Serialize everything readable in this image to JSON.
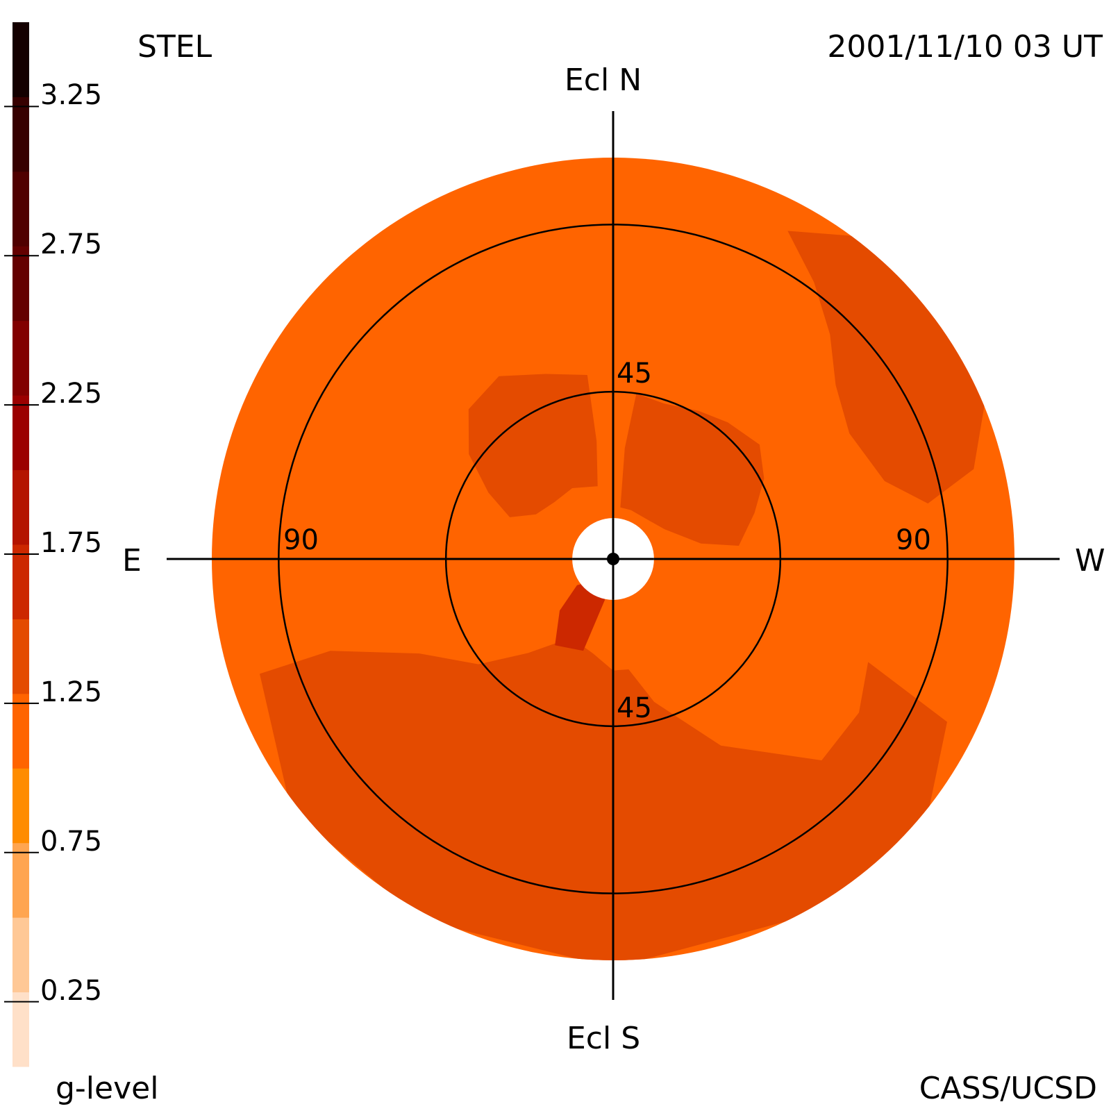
{
  "header": {
    "left_title": "STEL",
    "timestamp": "2001/11/10 03 UT"
  },
  "footer": {
    "colorbar_label": "g-level",
    "credit": "CASS/UCSD"
  },
  "chart_data": {
    "type": "heatmap",
    "projection": "polar sky map (Fisheye)",
    "directions": {
      "north": "Ecl N",
      "south": "Ecl S",
      "east": "E",
      "west": "W"
    },
    "ring_labels": {
      "north_inner": "45",
      "south_inner": "45",
      "east_outer": "90",
      "west_outer": "90"
    },
    "elongation_rings_deg": [
      45,
      90
    ],
    "sky_extent_deg": 108,
    "sun_occult_deg": 11,
    "colorbar": {
      "min": 0,
      "max": 3.5,
      "tick_values": [
        0.25,
        0.75,
        1.25,
        1.75,
        2.25,
        2.75,
        3.25
      ],
      "tick_labels": [
        "0.25",
        "0.75",
        "1.25",
        "1.75",
        "2.25",
        "2.75",
        "3.25"
      ],
      "levels": [
        {
          "from": 0.0,
          "to": 0.25,
          "color": "#ffe0c8"
        },
        {
          "from": 0.25,
          "to": 0.5,
          "color": "#ffc896"
        },
        {
          "from": 0.5,
          "to": 0.75,
          "color": "#ffa550"
        },
        {
          "from": 0.75,
          "to": 1.0,
          "color": "#ff8c00"
        },
        {
          "from": 1.0,
          "to": 1.25,
          "color": "#ff6400"
        },
        {
          "from": 1.25,
          "to": 1.5,
          "color": "#e44b00"
        },
        {
          "from": 1.5,
          "to": 1.75,
          "color": "#cc2800"
        },
        {
          "from": 1.75,
          "to": 2.0,
          "color": "#b41400"
        },
        {
          "from": 2.0,
          "to": 2.25,
          "color": "#9b0000"
        },
        {
          "from": 2.25,
          "to": 2.5,
          "color": "#820000"
        },
        {
          "from": 2.5,
          "to": 2.75,
          "color": "#640000"
        },
        {
          "from": 2.75,
          "to": 3.0,
          "color": "#500000"
        },
        {
          "from": 3.0,
          "to": 3.25,
          "color": "#370000"
        },
        {
          "from": 3.25,
          "to": 3.5,
          "color": "#140000"
        }
      ]
    },
    "background_level": 1.1,
    "regions": [
      {
        "name": "enhanced-northwest-arm",
        "g_level": 1.35,
        "center_pa_deg": 45,
        "extent": "inner 45 deg ring out to about 60 deg"
      },
      {
        "name": "enhanced-northeast-arm",
        "g_level": 1.35,
        "center_pa_deg": 320,
        "extent": "20 to 50 deg"
      },
      {
        "name": "enhanced-far-west",
        "g_level": 1.35,
        "center_pa_deg": 60,
        "extent": "75 to 108 deg"
      },
      {
        "name": "enhanced-south-band",
        "g_level": 1.35,
        "center_pa_deg": 180,
        "extent": "45 to 108 deg"
      },
      {
        "name": "peak-south-east",
        "g_level": 1.6,
        "center_pa_deg": 210,
        "extent": "8 to 25 deg"
      }
    ]
  }
}
